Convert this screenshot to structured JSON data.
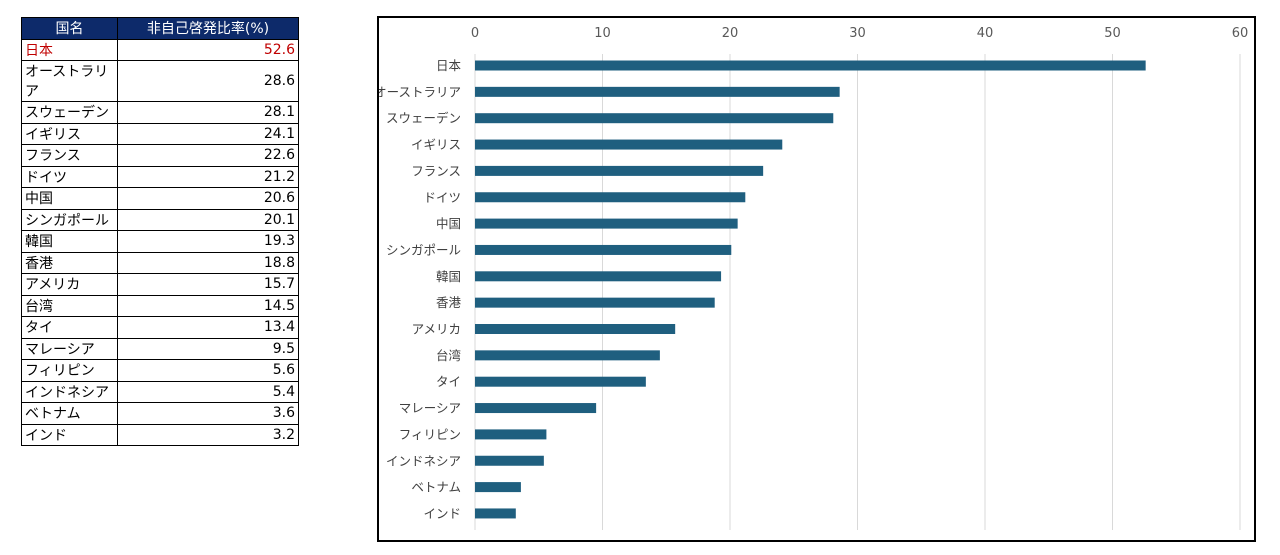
{
  "table": {
    "headers": [
      "国名",
      "非自己啓発比率(%)"
    ],
    "rows": [
      {
        "name": "日本",
        "value": "52.6"
      },
      {
        "name": "オーストラリア",
        "value": "28.6"
      },
      {
        "name": "スウェーデン",
        "value": "28.1"
      },
      {
        "name": "イギリス",
        "value": "24.1"
      },
      {
        "name": "フランス",
        "value": "22.6"
      },
      {
        "name": "ドイツ",
        "value": "21.2"
      },
      {
        "name": "中国",
        "value": "20.6"
      },
      {
        "name": "シンガポール",
        "value": "20.1"
      },
      {
        "name": "韓国",
        "value": "19.3"
      },
      {
        "name": "香港",
        "value": "18.8"
      },
      {
        "name": "アメリカ",
        "value": "15.7"
      },
      {
        "name": "台湾",
        "value": "14.5"
      },
      {
        "name": "タイ",
        "value": "13.4"
      },
      {
        "name": "マレーシア",
        "value": "9.5"
      },
      {
        "name": "フィリピン",
        "value": "5.6"
      },
      {
        "name": "インドネシア",
        "value": "5.4"
      },
      {
        "name": "ベトナム",
        "value": "3.6"
      },
      {
        "name": "インド",
        "value": "3.2"
      }
    ],
    "highlight_color": "#c00000",
    "header_color": "#0d2a6a"
  },
  "chart_data": {
    "type": "bar",
    "orientation": "horizontal",
    "categories": [
      "日本",
      "オーストラリア",
      "スウェーデン",
      "イギリス",
      "フランス",
      "ドイツ",
      "中国",
      "シンガポール",
      "韓国",
      "香港",
      "アメリカ",
      "台湾",
      "タイ",
      "マレーシア",
      "フィリピン",
      "インドネシア",
      "ベトナム",
      "インド"
    ],
    "values": [
      52.6,
      28.6,
      28.1,
      24.1,
      22.6,
      21.2,
      20.6,
      20.1,
      19.3,
      18.8,
      15.7,
      14.5,
      13.4,
      9.5,
      5.6,
      5.4,
      3.6,
      3.2
    ],
    "xlim": [
      0,
      60
    ],
    "xticks": [
      "0",
      "10",
      "20",
      "30",
      "40",
      "50",
      "60"
    ],
    "xaxis_position": "top",
    "grid": true,
    "bar_color": "#1f5f7f",
    "title": "",
    "xlabel": "",
    "ylabel": ""
  }
}
